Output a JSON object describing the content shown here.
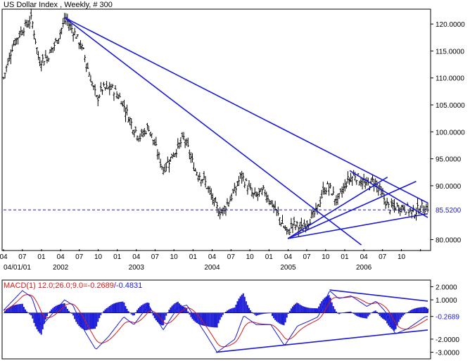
{
  "colors": {
    "background": "#ffffff",
    "frame": "#000000",
    "bars": "#000000",
    "trendlines": "#1a1ad6",
    "current_price_line": "#1a1ad6",
    "macd_line": "#1a1ad6",
    "signal_line": "#d41a1a",
    "histogram": "#1a1ad6",
    "label_text": "#000000"
  },
  "chart_data": [
    {
      "type": "ohlc",
      "title": "US Dollar Index , Weekly, # 300",
      "ylim": [
        78.5,
        122.5
      ],
      "y_ticks": [
        "120.0000",
        "115.0000",
        "110.0000",
        "105.0000",
        "100.0000",
        "95.0000",
        "90.0000",
        "80.0000"
      ],
      "y_tick_values": [
        120,
        115,
        110,
        105,
        100,
        95,
        90,
        80
      ],
      "x_tick_months": [
        "04",
        "07",
        "01",
        "04",
        "07",
        "10",
        "01",
        "04",
        "07",
        "10",
        "01",
        "04",
        "07",
        "10",
        "01",
        "04",
        "07",
        "10",
        "01",
        "04",
        "07",
        "10"
      ],
      "x_tick_years": [
        "04/01/01",
        "2002",
        "2003",
        "2004",
        "2005",
        "2006"
      ],
      "current_value": 85.52,
      "current_label": "85.5200",
      "price_anchors": [
        [
          "2001-04-01",
          110
        ],
        [
          "2001-05-15",
          116
        ],
        [
          "2001-07-01",
          119
        ],
        [
          "2001-08-15",
          121
        ],
        [
          "2001-09-20",
          113
        ],
        [
          "2001-11-01",
          114
        ],
        [
          "2001-12-15",
          117
        ],
        [
          "2002-01-25",
          121
        ],
        [
          "2002-03-15",
          118
        ],
        [
          "2002-04-20",
          115
        ],
        [
          "2002-05-25",
          110
        ],
        [
          "2002-06-25",
          106
        ],
        [
          "2002-07-20",
          108
        ],
        [
          "2002-09-10",
          108
        ],
        [
          "2002-10-20",
          106
        ],
        [
          "2002-12-15",
          101
        ],
        [
          "2003-01-20",
          99
        ],
        [
          "2003-03-01",
          101
        ],
        [
          "2003-05-10",
          93
        ],
        [
          "2003-07-01",
          96
        ],
        [
          "2003-08-20",
          99
        ],
        [
          "2003-10-10",
          93
        ],
        [
          "2003-11-25",
          91
        ],
        [
          "2004-01-20",
          86
        ],
        [
          "2004-02-15",
          85
        ],
        [
          "2004-04-20",
          89
        ],
        [
          "2004-05-20",
          92
        ],
        [
          "2004-07-20",
          88
        ],
        [
          "2004-09-10",
          89
        ],
        [
          "2004-10-25",
          86
        ],
        [
          "2004-12-31",
          81
        ],
        [
          "2005-01-20",
          83
        ],
        [
          "2005-03-10",
          82
        ],
        [
          "2005-04-20",
          84
        ],
        [
          "2005-05-15",
          85
        ],
        [
          "2005-06-20",
          89
        ],
        [
          "2005-07-15",
          90
        ],
        [
          "2005-08-25",
          87
        ],
        [
          "2005-10-15",
          91
        ],
        [
          "2005-11-20",
          92
        ],
        [
          "2006-01-10",
          90
        ],
        [
          "2006-02-20",
          91
        ],
        [
          "2006-03-20",
          89
        ],
        [
          "2006-05-01",
          86
        ],
        [
          "2006-06-15",
          86
        ],
        [
          "2006-07-20",
          86
        ],
        [
          "2006-08-25",
          85
        ],
        [
          "2006-10-05",
          86
        ],
        [
          "2006-10-25",
          86
        ]
      ],
      "x_start": "2001-04-01",
      "x_end": "2006-11-05"
    },
    {
      "type": "macd",
      "label": "MACD(1) 12.0;26.0;9.0=-0.2689/-0.4831",
      "parameters": [
        12,
        26,
        9
      ],
      "macd_value": -0.2689,
      "signal_value": -0.4831,
      "ylim": [
        -3.4,
        2.4
      ],
      "y_ticks": [
        "2.0000",
        "1.0000",
        "-0.2689",
        "-2.0000",
        "-3.0000"
      ],
      "y_tick_values": [
        2,
        1,
        -0.2689,
        -2,
        -3
      ],
      "macd_anchors": [
        [
          "2001-04-01",
          0.2
        ],
        [
          "2001-07-01",
          1.7
        ],
        [
          "2001-08-15",
          1.2
        ],
        [
          "2001-10-01",
          -1.0
        ],
        [
          "2001-12-01",
          0.1
        ],
        [
          "2002-01-20",
          1.0
        ],
        [
          "2002-03-01",
          0.6
        ],
        [
          "2002-05-01",
          -1.5
        ],
        [
          "2002-06-20",
          -2.8
        ],
        [
          "2002-08-20",
          -1.8
        ],
        [
          "2002-11-01",
          -0.3
        ],
        [
          "2002-12-20",
          -0.9
        ],
        [
          "2003-03-01",
          0.6
        ],
        [
          "2003-05-10",
          -1.3
        ],
        [
          "2003-07-20",
          0.4
        ],
        [
          "2003-09-01",
          0.6
        ],
        [
          "2003-12-01",
          -1.6
        ],
        [
          "2004-01-25",
          -3.0
        ],
        [
          "2004-04-20",
          -2.0
        ],
        [
          "2004-06-01",
          -0.2
        ],
        [
          "2004-08-01",
          -0.9
        ],
        [
          "2004-10-10",
          -0.9
        ],
        [
          "2004-12-15",
          -2.5
        ],
        [
          "2005-02-15",
          -1.0
        ],
        [
          "2005-04-15",
          -0.6
        ],
        [
          "2005-05-25",
          -0.3
        ],
        [
          "2005-07-20",
          1.7
        ],
        [
          "2005-09-01",
          1.1
        ],
        [
          "2005-11-01",
          1.3
        ],
        [
          "2006-01-15",
          0.5
        ],
        [
          "2006-03-01",
          0.9
        ],
        [
          "2006-04-15",
          0.1
        ],
        [
          "2006-06-01",
          -1.6
        ],
        [
          "2006-08-01",
          -1.2
        ],
        [
          "2006-10-25",
          -0.27
        ]
      ]
    }
  ]
}
